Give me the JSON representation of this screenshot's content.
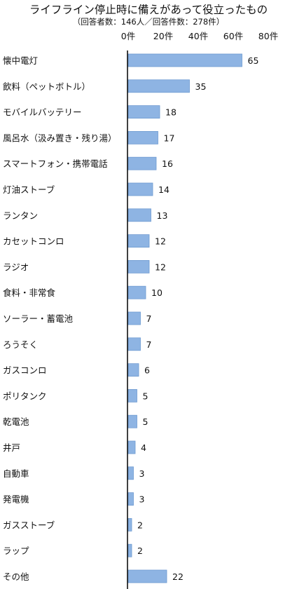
{
  "title": "ライフライン停止時に備えがあって役立ったもの",
  "subtitle": "（回答者数：146人／回答件数：278件）",
  "chart_data": {
    "type": "bar",
    "orientation": "horizontal",
    "title": "ライフライン停止時に備えがあって役立ったもの",
    "subtitle": "（回答者数：146人／回答件数：278件）",
    "categories": [
      "懐中電灯",
      "飲料（ペットボトル）",
      "モバイルバッテリー",
      "風呂水（汲み置き・残り湯）",
      "スマートフォン・携帯電話",
      "灯油ストーブ",
      "ランタン",
      "カセットコンロ",
      "ラジオ",
      "食料・非常食",
      "ソーラー・蓄電池",
      "ろうそく",
      "ガスコンロ",
      "ポリタンク",
      "乾電池",
      "井戸",
      "自動車",
      "発電機",
      "ガスストーブ",
      "ラップ",
      "その他"
    ],
    "values": [
      65,
      35,
      18,
      17,
      16,
      14,
      13,
      12,
      12,
      10,
      7,
      7,
      6,
      5,
      5,
      4,
      3,
      3,
      2,
      2,
      22
    ],
    "x_ticks": [
      "0件",
      "20件",
      "40件",
      "60件",
      "80件"
    ],
    "xlim": [
      0,
      80
    ],
    "xlabel": "",
    "ylabel": "",
    "grid": false,
    "legend": "none",
    "bar_color": "#8EB4E3",
    "bar_edge_color": "#6F9BD1",
    "axis_color": "#000000"
  }
}
